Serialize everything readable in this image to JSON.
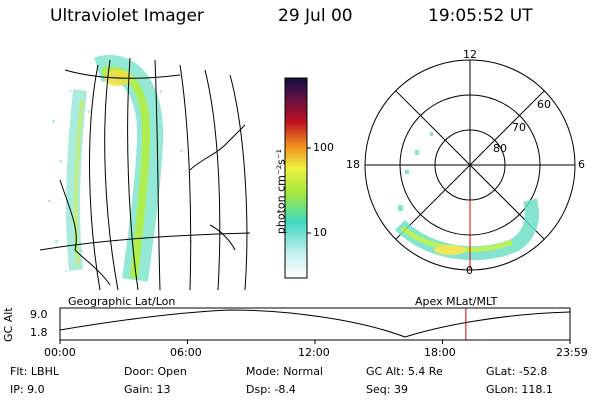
{
  "header": {
    "instrument": "Ultraviolet Imager",
    "date": "29 Jul 00",
    "time": "19:05:52 UT"
  },
  "left_panel": {
    "label": "Geographic Lat/Lon"
  },
  "right_panel": {
    "label": "Apex MLat/MLT",
    "mlt_labels": {
      "top": "12",
      "left": "18",
      "right": "6",
      "bottom": "0"
    },
    "lat_labels": [
      "60",
      "70",
      "80"
    ]
  },
  "colorbar": {
    "unit_label": "photon cm⁻²s⁻¹",
    "tick_labels": [
      "100",
      "10"
    ]
  },
  "altitude_plot": {
    "ylabel": "GC Alt",
    "yticks": [
      "9.0",
      "1.8"
    ],
    "xticks": [
      "00:00",
      "06:00",
      "12:00",
      "18:00",
      "23:59"
    ],
    "current_time_marker_hour": 19.1,
    "marker_color": "#d40000"
  },
  "info": {
    "flt_label": "Flt:",
    "flt_value": "LBHL",
    "ip_label": "IP:",
    "ip_value": "9.0",
    "door_label": "Door:",
    "door_value": "Open",
    "gain_label": "Gain:",
    "gain_value": "13",
    "mode_label": "Mode:",
    "mode_value": "Normal",
    "dsp_label": "Dsp:",
    "dsp_value": "-8.4",
    "gcalt_label": "GC Alt:",
    "gcalt_value": "5.4 Re",
    "seq_label": "Seq:",
    "seq_value": "39",
    "glat_label": "GLat:",
    "glat_value": "-52.8",
    "glon_label": "GLon:",
    "glon_value": "118.1"
  }
}
